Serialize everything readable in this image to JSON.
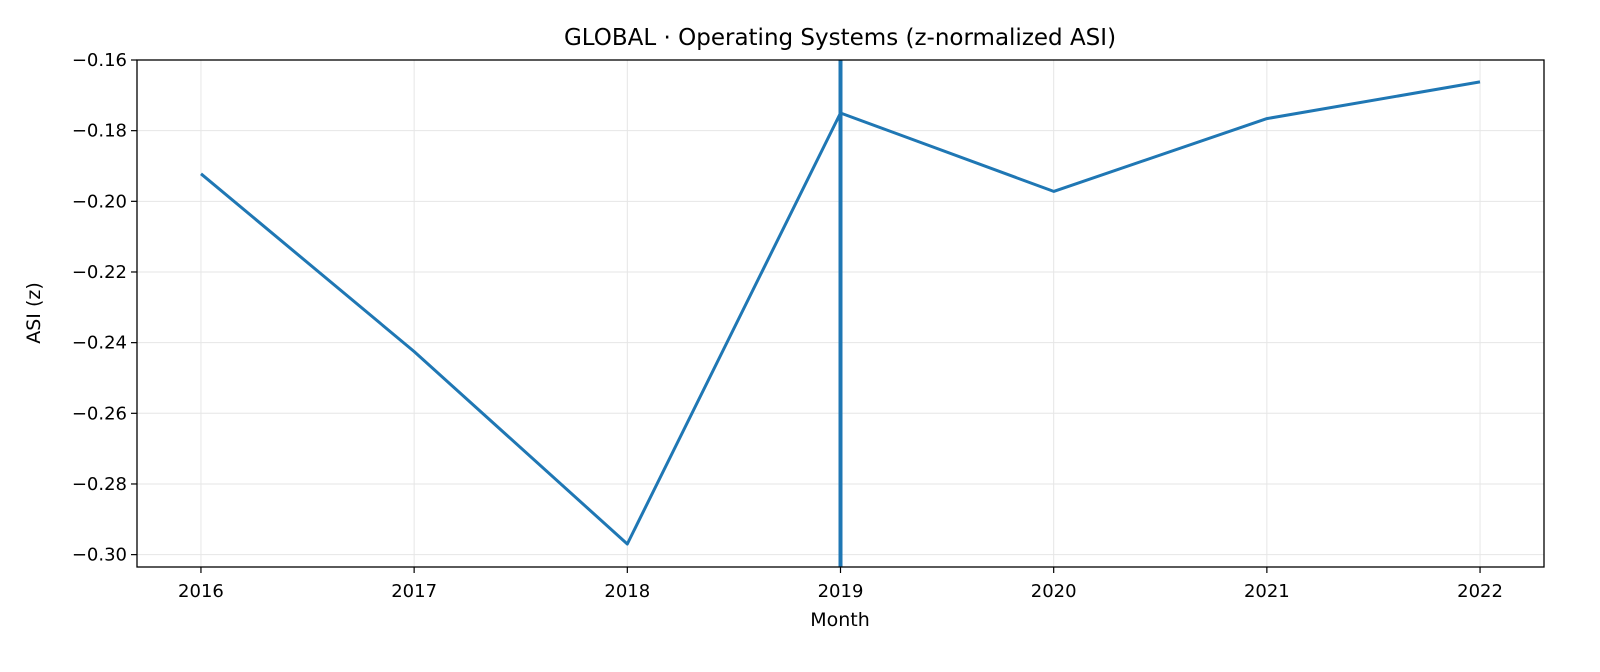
{
  "chart_data": {
    "type": "line",
    "title": "GLOBAL · Operating Systems (z-normalized ASI)",
    "xlabel": "Month",
    "ylabel": "ASI (z)",
    "x": [
      2016,
      2017,
      2018,
      2019,
      2020,
      2021,
      2022
    ],
    "x_tick_labels": [
      "2016",
      "2017",
      "2018",
      "2019",
      "2020",
      "2021",
      "2022"
    ],
    "xlim": [
      2015.7,
      2022.3
    ],
    "ylim": [
      -0.3035,
      -0.16
    ],
    "y_ticks": [
      -0.16,
      -0.18,
      -0.2,
      -0.22,
      -0.24,
      -0.26,
      -0.28,
      -0.3
    ],
    "y_tick_labels": [
      "−0.16",
      "−0.18",
      "−0.20",
      "−0.22",
      "−0.24",
      "−0.26",
      "−0.28",
      "−0.30"
    ],
    "series": [
      {
        "values": [
          -0.1922,
          -0.2425,
          -0.297,
          -0.175,
          -0.1972,
          -0.1766,
          -0.1662
        ]
      }
    ],
    "vertical_line_x": 2019,
    "grid": true,
    "colors": {
      "line": "#1f77b4",
      "grid": "#e6e6e6",
      "axis": "#000000"
    }
  }
}
